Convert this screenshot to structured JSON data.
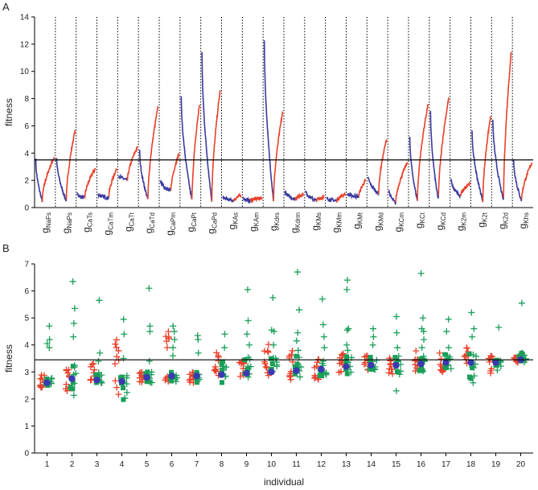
{
  "chart_data": [
    {
      "panel": "A",
      "type": "line",
      "title": "",
      "xlabel": "",
      "ylabel": "fitness",
      "ylim": [
        0,
        14
      ],
      "yticks": [
        0,
        2,
        4,
        6,
        8,
        10,
        12,
        14
      ],
      "reference_line": 3.5,
      "grid": false,
      "colors": {
        "increase": "#e8402a",
        "decrease": "#3a3aa0",
        "reference": "#000000",
        "separator": "#000000"
      },
      "parameters": [
        {
          "base": "g",
          "sub": "NaFs",
          "left": 3.5,
          "min": 0.5,
          "right": 3.7
        },
        {
          "base": "g",
          "sub": "NaPs",
          "left": 3.7,
          "min": 0.5,
          "right": 5.6
        },
        {
          "base": "g",
          "sub": "CaTs",
          "left": 1.0,
          "min": 0.7,
          "right": 2.9
        },
        {
          "base": "g",
          "sub": "CaTm",
          "left": 1.0,
          "min": 0.7,
          "right": 2.8
        },
        {
          "base": "g",
          "sub": "CaTt",
          "left": 2.4,
          "min": 2.0,
          "right": 4.4
        },
        {
          "base": "g",
          "sub": "CaTd",
          "left": 4.2,
          "min": 0.6,
          "right": 7.4
        },
        {
          "base": "g",
          "sub": "CaPm",
          "left": 2.0,
          "min": 1.2,
          "right": 3.9
        },
        {
          "base": "g",
          "sub": "CaPt",
          "left": 8.3,
          "min": 0.5,
          "right": 7.6
        },
        {
          "base": "g",
          "sub": "CaPd",
          "left": 11.4,
          "min": 0.5,
          "right": 8.7
        },
        {
          "base": "g",
          "sub": "KAs",
          "left": 0.8,
          "min": 0.5,
          "right": 0.9
        },
        {
          "base": "g",
          "sub": "KAm",
          "left": 0.7,
          "min": 0.5,
          "right": 0.7
        },
        {
          "base": "g",
          "sub": "Kdrs",
          "left": 12.4,
          "min": 0.5,
          "right": 7.0
        },
        {
          "base": "g",
          "sub": "Kdrm",
          "left": 1.2,
          "min": 0.6,
          "right": 1.0
        },
        {
          "base": "g",
          "sub": "KMs",
          "left": 1.2,
          "min": 0.5,
          "right": 0.8
        },
        {
          "base": "g",
          "sub": "KMm",
          "left": 0.7,
          "min": 0.5,
          "right": 1.0
        },
        {
          "base": "g",
          "sub": "KMt",
          "left": 1.0,
          "min": 0.8,
          "right": 2.0
        },
        {
          "base": "g",
          "sub": "KMd",
          "left": 2.3,
          "min": 1.0,
          "right": 5.0
        },
        {
          "base": "g",
          "sub": "KCm",
          "left": 1.3,
          "min": 0.3,
          "right": 3.3
        },
        {
          "base": "g",
          "sub": "KCt",
          "left": 5.2,
          "min": 0.5,
          "right": 7.6
        },
        {
          "base": "g",
          "sub": "KCd",
          "left": 7.0,
          "min": 0.5,
          "right": 8.1
        },
        {
          "base": "g",
          "sub": "K2m",
          "left": 2.0,
          "min": 0.8,
          "right": 1.8
        },
        {
          "base": "g",
          "sub": "K2t",
          "left": 5.6,
          "min": 0.5,
          "right": 6.6
        },
        {
          "base": "g",
          "sub": "K2d",
          "left": 6.5,
          "min": 0.5,
          "right": 11.4
        },
        {
          "base": "g",
          "sub": "Khs",
          "left": 3.6,
          "min": 0.5,
          "right": 3.3
        }
      ]
    },
    {
      "panel": "B",
      "type": "scatter",
      "title": "",
      "xlabel": "individual",
      "ylabel": "fitness",
      "xlim": [
        0.5,
        20.5
      ],
      "ylim": [
        0,
        7
      ],
      "yticks": [
        0,
        1,
        2,
        3,
        4,
        5,
        6,
        7
      ],
      "categories": [
        "1",
        "2",
        "3",
        "4",
        "5",
        "6",
        "7",
        "8",
        "9",
        "10",
        "11",
        "12",
        "13",
        "14",
        "15",
        "16",
        "17",
        "18",
        "19",
        "20"
      ],
      "reference_line": 3.45,
      "grid": false,
      "colors": {
        "red_crosses": "#e8402a",
        "green_crosses": "#1a9e5a",
        "green_squares": "#1a9e5a",
        "blue_dots": "#3a3ab0"
      },
      "individuals": [
        {
          "x": 1,
          "center": 2.6,
          "red_min": 2.35,
          "red_max": 2.9,
          "green_min": 2.5,
          "green_max": 2.8,
          "outliers": [
            4.7,
            4.2,
            4.05,
            3.9
          ]
        },
        {
          "x": 2,
          "center": 2.75,
          "red_min": 2.3,
          "red_max": 3.1,
          "green_min": 2.0,
          "green_max": 3.5,
          "outliers": [
            6.35,
            5.35,
            4.8,
            4.3
          ]
        },
        {
          "x": 3,
          "center": 2.7,
          "red_min": 2.3,
          "red_max": 3.4,
          "green_min": 2.5,
          "green_max": 3.1,
          "outliers": [
            5.65,
            3.7,
            3.4
          ]
        },
        {
          "x": 4,
          "center": 2.65,
          "red_min": 1.9,
          "red_max": 4.35,
          "green_min": 1.9,
          "green_max": 2.9,
          "outliers": [
            4.95,
            4.4,
            3.5
          ]
        },
        {
          "x": 5,
          "center": 2.8,
          "red_min": 2.6,
          "red_max": 3.0,
          "green_min": 2.6,
          "green_max": 3.0,
          "outliers": [
            6.1,
            4.7,
            4.5,
            3.4
          ]
        },
        {
          "x": 6,
          "center": 2.85,
          "red_min": 2.6,
          "red_max": 4.6,
          "green_min": 2.6,
          "green_max": 3.0,
          "outliers": [
            4.7,
            4.5,
            4.2,
            3.9,
            3.6
          ]
        },
        {
          "x": 7,
          "center": 2.85,
          "red_min": 2.6,
          "red_max": 3.0,
          "green_min": 2.6,
          "green_max": 3.0,
          "outliers": [
            4.35,
            4.2,
            3.7
          ]
        },
        {
          "x": 8,
          "center": 2.9,
          "red_min": 2.5,
          "red_max": 3.8,
          "green_min": 2.6,
          "green_max": 3.4,
          "outliers": [
            4.4,
            3.9
          ]
        },
        {
          "x": 9,
          "center": 2.95,
          "red_min": 2.7,
          "red_max": 3.6,
          "green_min": 2.8,
          "green_max": 3.6,
          "outliers": [
            6.05,
            4.9,
            4.4,
            4.0
          ]
        },
        {
          "x": 10,
          "center": 3.0,
          "red_min": 2.7,
          "red_max": 4.1,
          "green_min": 2.8,
          "green_max": 3.6,
          "outliers": [
            5.75,
            4.55,
            4.5,
            4.0
          ]
        },
        {
          "x": 11,
          "center": 3.05,
          "red_min": 2.7,
          "red_max": 3.8,
          "green_min": 2.8,
          "green_max": 3.6,
          "outliers": [
            6.7,
            5.3,
            4.45,
            4.15,
            3.8
          ]
        },
        {
          "x": 12,
          "center": 3.1,
          "red_min": 2.7,
          "red_max": 3.5,
          "green_min": 2.8,
          "green_max": 3.5,
          "outliers": [
            5.7,
            4.75,
            4.3,
            3.9
          ]
        },
        {
          "x": 13,
          "center": 3.2,
          "red_min": 2.9,
          "red_max": 3.8,
          "green_min": 2.9,
          "green_max": 3.6,
          "outliers": [
            6.4,
            6.05,
            4.6,
            4.55,
            4.0,
            3.8
          ]
        },
        {
          "x": 14,
          "center": 3.25,
          "red_min": 3.0,
          "red_max": 3.6,
          "green_min": 3.0,
          "green_max": 3.6,
          "outliers": [
            4.6,
            4.3,
            4.0
          ]
        },
        {
          "x": 15,
          "center": 3.25,
          "red_min": 2.9,
          "red_max": 3.6,
          "green_min": 2.9,
          "green_max": 3.6,
          "outliers": [
            5.05,
            4.45,
            3.9,
            2.3
          ]
        },
        {
          "x": 16,
          "center": 3.3,
          "red_min": 3.0,
          "red_max": 3.8,
          "green_min": 3.0,
          "green_max": 3.7,
          "outliers": [
            6.65,
            5.0,
            4.6,
            4.5,
            4.2,
            3.9
          ]
        },
        {
          "x": 17,
          "center": 3.35,
          "red_min": 3.0,
          "red_max": 3.7,
          "green_min": 3.0,
          "green_max": 3.7,
          "outliers": [
            4.95,
            4.5,
            3.9
          ]
        },
        {
          "x": 18,
          "center": 3.35,
          "red_min": 2.9,
          "red_max": 3.9,
          "green_min": 2.7,
          "green_max": 3.7,
          "outliers": [
            5.2,
            4.6,
            4.3,
            2.6
          ]
        },
        {
          "x": 19,
          "center": 3.35,
          "red_min": 2.9,
          "red_max": 3.6,
          "green_min": 3.0,
          "green_max": 3.6,
          "outliers": [
            4.65
          ]
        },
        {
          "x": 20,
          "center": 3.45,
          "red_min": 3.35,
          "red_max": 3.55,
          "green_min": 3.35,
          "green_max": 3.7,
          "outliers": [
            5.55,
            3.7
          ]
        }
      ]
    }
  ],
  "panels": [
    {
      "label": "A"
    },
    {
      "label": "B"
    }
  ]
}
